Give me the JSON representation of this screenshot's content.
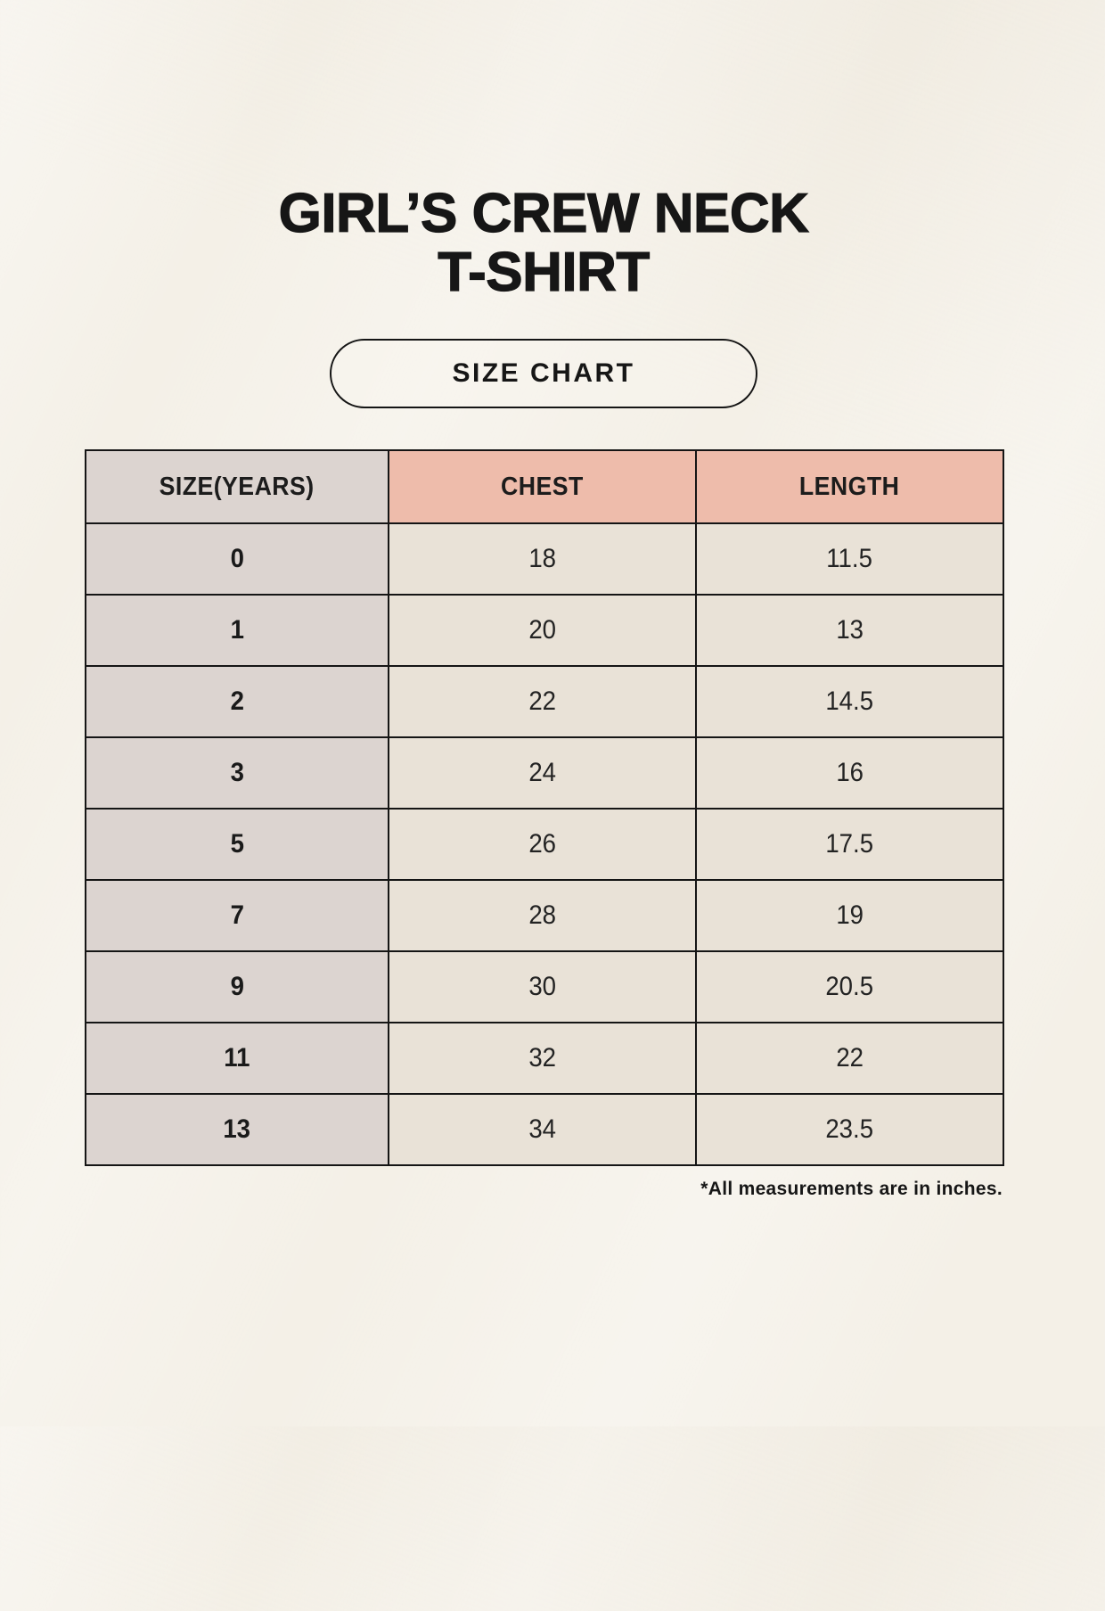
{
  "header": {
    "title_line1": "GIRL’S CREW NECK",
    "title_line2": "T-SHIRT",
    "size_chart_label": "SIZE CHART"
  },
  "chart_data": {
    "type": "table",
    "title": "GIRL’S CREW NECK T-SHIRT SIZE CHART",
    "columns": [
      "SIZE(YEARS)",
      "CHEST",
      "LENGTH"
    ],
    "rows": [
      [
        "0",
        "18",
        "11.5"
      ],
      [
        "1",
        "20",
        "13"
      ],
      [
        "2",
        "22",
        "14.5"
      ],
      [
        "3",
        "24",
        "16"
      ],
      [
        "5",
        "26",
        "17.5"
      ],
      [
        "7",
        "28",
        "19"
      ],
      [
        "9",
        "30",
        "20.5"
      ],
      [
        "11",
        "32",
        "22"
      ],
      [
        "13",
        "34",
        "23.5"
      ]
    ],
    "units": "inches",
    "footnote": "*All measurements are in inches."
  },
  "colors": {
    "background": "#f4f0e7",
    "accent_salmon": "#eebcab",
    "header_gray": "#dcd4d0",
    "cell_cream": "#e9e2d7",
    "border": "#151515",
    "text": "#1c1c1c"
  }
}
